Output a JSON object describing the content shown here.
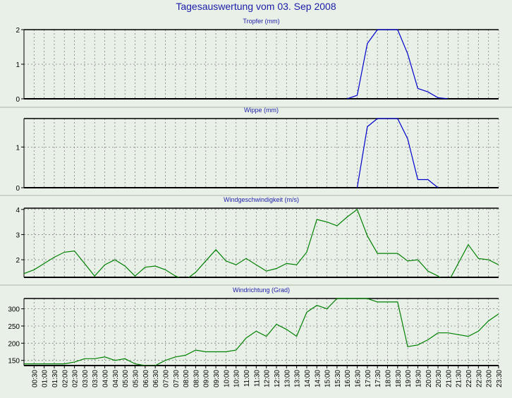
{
  "title": "Tagesauswertung vom 03. Sep 2008",
  "colors": {
    "background": "#e8f0e8",
    "title": "#1c1ca8",
    "rain_line": "#0000cc",
    "wind_line": "#008000",
    "grid": "#808080"
  },
  "chart_data": [
    {
      "type": "line",
      "title": "Tropfer (mm)",
      "color": "#0000cc",
      "ylim": [
        0,
        2
      ],
      "yticks": [
        0,
        1,
        2
      ],
      "x": [
        16,
        16.5,
        17,
        17.5,
        18,
        18.5,
        19,
        19.5,
        20,
        20.5,
        21
      ],
      "values": [
        0,
        0.1,
        1.6,
        2.0,
        2.0,
        2.0,
        1.3,
        0.3,
        0.2,
        0.03,
        0
      ]
    },
    {
      "type": "line",
      "title": "Wippe (mm)",
      "color": "#0000cc",
      "ylim": [
        0,
        1.7
      ],
      "yticks": [
        0,
        1
      ],
      "x": [
        16.5,
        17,
        17.5,
        18,
        18.5,
        19,
        19.5,
        20,
        20.5
      ],
      "values": [
        0,
        1.5,
        1.7,
        1.7,
        1.7,
        1.2,
        0.2,
        0.2,
        0
      ]
    },
    {
      "type": "line",
      "title": "Windgeschwindigkeit (m/s)",
      "color": "#008000",
      "ylim": [
        1.3,
        4.05
      ],
      "yticks": [
        2,
        3,
        4
      ],
      "x": [
        0,
        0.5,
        1,
        1.5,
        2,
        2.5,
        3,
        3.5,
        4,
        4.5,
        5,
        5.5,
        6,
        6.5,
        7,
        7.5,
        8,
        8.5,
        9,
        9.5,
        10,
        10.5,
        11,
        11.5,
        12,
        12.5,
        13,
        13.5,
        14,
        14.5,
        15,
        15.5,
        16,
        16.5,
        17,
        17.5,
        18,
        18.5,
        19,
        19.5,
        20,
        20.5,
        21,
        21.5,
        22,
        22.5,
        23,
        23.5
      ],
      "values": [
        1.45,
        1.6,
        1.85,
        2.1,
        2.3,
        2.35,
        1.85,
        1.35,
        1.8,
        2.0,
        1.75,
        1.35,
        1.7,
        1.75,
        1.6,
        1.35,
        1.2,
        1.5,
        1.95,
        2.4,
        1.95,
        1.8,
        2.05,
        1.8,
        1.55,
        1.65,
        1.85,
        1.8,
        2.3,
        3.6,
        3.5,
        3.35,
        3.7,
        4.0,
        2.95,
        2.25,
        2.25,
        2.25,
        1.95,
        2.0,
        1.55,
        1.35,
        1.1,
        1.85,
        2.6,
        2.05,
        2.0,
        1.8
      ]
    },
    {
      "type": "line",
      "title": "Windrichtung (Grad)",
      "color": "#008000",
      "ylim": [
        135,
        330
      ],
      "yticks": [
        150,
        200,
        250,
        300
      ],
      "x": [
        0,
        0.5,
        1,
        1.5,
        2,
        2.5,
        3,
        3.5,
        4,
        4.5,
        5,
        5.5,
        6,
        6.5,
        7,
        7.5,
        8,
        8.5,
        9,
        9.5,
        10,
        10.5,
        11,
        11.5,
        12,
        12.5,
        13,
        13.5,
        14,
        14.5,
        15,
        15.5,
        16,
        16.5,
        17,
        17.5,
        18,
        18.5,
        19,
        19.5,
        20,
        20.5,
        21,
        21.5,
        22,
        22.5,
        23,
        23.5
      ],
      "values": [
        140,
        140,
        140,
        140,
        140,
        145,
        155,
        155,
        160,
        150,
        155,
        140,
        135,
        135,
        150,
        160,
        165,
        180,
        175,
        175,
        175,
        180,
        215,
        235,
        220,
        255,
        240,
        220,
        290,
        310,
        300,
        330,
        330,
        330,
        330,
        320,
        320,
        320,
        190,
        195,
        210,
        230,
        230,
        225,
        220,
        235,
        265,
        285
      ]
    }
  ],
  "x_axis": {
    "ticks": [
      "00:30",
      "01:00",
      "01:30",
      "02:00",
      "02:30",
      "03:00",
      "03:30",
      "04:00",
      "04:30",
      "05:00",
      "05:30",
      "06:00",
      "06:30",
      "07:00",
      "07:30",
      "08:00",
      "08:30",
      "09:00",
      "09:30",
      "10:00",
      "10:30",
      "11:00",
      "11:30",
      "12:00",
      "12:30",
      "13:00",
      "13:30",
      "14:00",
      "14:30",
      "15:00",
      "15:30",
      "16:00",
      "16:30",
      "17:00",
      "17:30",
      "18:00",
      "18:30",
      "19:00",
      "19:30",
      "20:00",
      "20:30",
      "21:00",
      "21:30",
      "22:00",
      "22:30",
      "23:00",
      "23:30"
    ]
  }
}
